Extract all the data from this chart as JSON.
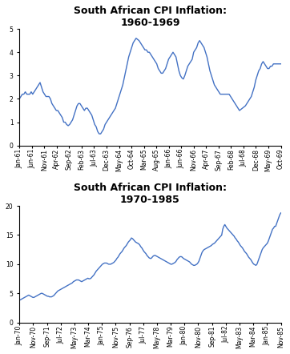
{
  "chart1": {
    "title": "South African CPI Inflation:\n1960-1969",
    "ylim": [
      0,
      5
    ],
    "yticks": [
      0,
      1,
      2,
      3,
      4,
      5
    ],
    "xtick_labels": [
      "Jan-61",
      "Jun-61",
      "Nov-61",
      "Apr-62",
      "Sep-62",
      "Feb-63",
      "Jul-63",
      "Dec-63",
      "May-64",
      "Oct-64",
      "Mar-65",
      "Aug-65",
      "Jan-66",
      "Jun-66",
      "Nov-66",
      "Apr-67",
      "Sep-67",
      "Feb-68",
      "Jul-68",
      "Dec-68",
      "May-69",
      "Oct-69"
    ],
    "line_color": "#4472C4",
    "values": [
      2.0,
      2.1,
      2.2,
      2.2,
      2.3,
      2.2,
      2.2,
      2.2,
      2.3,
      2.2,
      2.3,
      2.4,
      2.5,
      2.6,
      2.7,
      2.5,
      2.3,
      2.2,
      2.1,
      2.1,
      2.1,
      2.0,
      1.8,
      1.7,
      1.6,
      1.5,
      1.5,
      1.4,
      1.3,
      1.2,
      1.0,
      1.0,
      0.9,
      0.85,
      0.9,
      1.0,
      1.1,
      1.3,
      1.5,
      1.7,
      1.8,
      1.8,
      1.7,
      1.6,
      1.5,
      1.6,
      1.6,
      1.5,
      1.4,
      1.3,
      1.1,
      0.9,
      0.8,
      0.6,
      0.5,
      0.5,
      0.6,
      0.7,
      0.9,
      1.0,
      1.1,
      1.2,
      1.3,
      1.4,
      1.5,
      1.6,
      1.8,
      2.0,
      2.2,
      2.4,
      2.6,
      2.9,
      3.2,
      3.5,
      3.8,
      4.0,
      4.2,
      4.4,
      4.5,
      4.6,
      4.55,
      4.5,
      4.4,
      4.3,
      4.2,
      4.1,
      4.1,
      4.0,
      4.0,
      3.9,
      3.8,
      3.7,
      3.6,
      3.5,
      3.3,
      3.2,
      3.1,
      3.1,
      3.2,
      3.3,
      3.5,
      3.7,
      3.8,
      3.9,
      4.0,
      3.9,
      3.8,
      3.5,
      3.2,
      3.0,
      2.9,
      2.85,
      3.0,
      3.2,
      3.4,
      3.5,
      3.6,
      3.7,
      4.0,
      4.1,
      4.2,
      4.4,
      4.5,
      4.4,
      4.3,
      4.2,
      4.0,
      3.8,
      3.5,
      3.2,
      3.0,
      2.8,
      2.6,
      2.5,
      2.4,
      2.3,
      2.2,
      2.2,
      2.2,
      2.2,
      2.2,
      2.2,
      2.2,
      2.1,
      2.0,
      1.9,
      1.8,
      1.7,
      1.6,
      1.5,
      1.55,
      1.6,
      1.65,
      1.7,
      1.8,
      1.9,
      2.0,
      2.1,
      2.3,
      2.5,
      2.8,
      3.0,
      3.2,
      3.3,
      3.5,
      3.6,
      3.5,
      3.4,
      3.3,
      3.3,
      3.4,
      3.4,
      3.5,
      3.5,
      3.5,
      3.5,
      3.5,
      3.5
    ]
  },
  "chart2": {
    "title": "South African CPI Inflation:\n1970-1985",
    "ylim": [
      0,
      20
    ],
    "yticks": [
      0,
      5,
      10,
      15,
      20
    ],
    "xtick_labels": [
      "Jan-70",
      "Nov-70",
      "Sep-71",
      "Jul-72",
      "May-73",
      "Mar-74",
      "Jan-75",
      "Nov-75",
      "Sep-76",
      "Jul-77",
      "May-78",
      "Mar-79",
      "Jan-80",
      "Nov-80",
      "Sep-81",
      "Jul-82",
      "May-83",
      "Mar-84",
      "Jan-85",
      "Nov-85"
    ],
    "line_color": "#4472C4",
    "values": [
      3.8,
      3.9,
      4.0,
      4.1,
      4.2,
      4.3,
      4.4,
      4.5,
      4.6,
      4.7,
      4.6,
      4.5,
      4.4,
      4.3,
      4.3,
      4.4,
      4.5,
      4.6,
      4.7,
      4.8,
      4.9,
      5.0,
      5.0,
      4.9,
      4.8,
      4.7,
      4.6,
      4.5,
      4.5,
      4.4,
      4.4,
      4.4,
      4.5,
      4.6,
      4.8,
      5.0,
      5.2,
      5.4,
      5.5,
      5.6,
      5.7,
      5.8,
      5.9,
      6.0,
      6.1,
      6.2,
      6.3,
      6.4,
      6.5,
      6.6,
      6.7,
      6.8,
      7.0,
      7.1,
      7.2,
      7.3,
      7.3,
      7.3,
      7.2,
      7.1,
      7.0,
      7.1,
      7.2,
      7.3,
      7.4,
      7.5,
      7.6,
      7.5,
      7.5,
      7.6,
      7.8,
      8.0,
      8.2,
      8.5,
      8.8,
      9.0,
      9.2,
      9.4,
      9.6,
      9.8,
      10.0,
      10.1,
      10.2,
      10.2,
      10.2,
      10.1,
      10.0,
      10.0,
      10.0,
      10.1,
      10.2,
      10.3,
      10.5,
      10.7,
      11.0,
      11.2,
      11.5,
      11.8,
      12.0,
      12.2,
      12.5,
      12.8,
      13.0,
      13.2,
      13.5,
      13.8,
      14.0,
      14.2,
      14.5,
      14.4,
      14.2,
      14.0,
      13.8,
      13.7,
      13.6,
      13.5,
      13.3,
      13.0,
      12.8,
      12.5,
      12.2,
      12.0,
      11.8,
      11.5,
      11.3,
      11.1,
      11.0,
      11.0,
      11.2,
      11.4,
      11.5,
      11.5,
      11.4,
      11.3,
      11.2,
      11.1,
      11.0,
      10.9,
      10.8,
      10.7,
      10.6,
      10.5,
      10.4,
      10.3,
      10.2,
      10.1,
      10.0,
      10.0,
      10.1,
      10.2,
      10.3,
      10.5,
      10.8,
      11.0,
      11.2,
      11.3,
      11.3,
      11.2,
      11.0,
      10.9,
      10.8,
      10.7,
      10.6,
      10.5,
      10.4,
      10.2,
      10.0,
      9.9,
      9.8,
      9.8,
      9.9,
      10.0,
      10.2,
      10.5,
      11.0,
      11.5,
      12.0,
      12.3,
      12.5,
      12.6,
      12.7,
      12.8,
      12.9,
      13.0,
      13.1,
      13.2,
      13.4,
      13.5,
      13.6,
      13.8,
      14.0,
      14.2,
      14.4,
      14.6,
      14.8,
      15.0,
      16.0,
      16.5,
      16.8,
      16.5,
      16.2,
      16.0,
      15.8,
      15.6,
      15.4,
      15.2,
      15.0,
      14.8,
      14.5,
      14.3,
      14.0,
      13.8,
      13.5,
      13.2,
      13.0,
      12.8,
      12.5,
      12.2,
      12.0,
      11.8,
      11.5,
      11.2,
      11.0,
      10.8,
      10.5,
      10.2,
      10.0,
      9.9,
      9.8,
      10.0,
      10.5,
      11.0,
      11.5,
      12.0,
      12.5,
      12.8,
      13.0,
      13.2,
      13.4,
      13.6,
      14.0,
      14.5,
      15.0,
      15.5,
      16.0,
      16.2,
      16.5,
      16.5,
      17.0,
      17.5,
      18.0,
      18.5,
      18.8
    ]
  },
  "background_color": "#ffffff",
  "line_width": 1.0,
  "title_fontsize": 9,
  "tick_fontsize": 5.5
}
